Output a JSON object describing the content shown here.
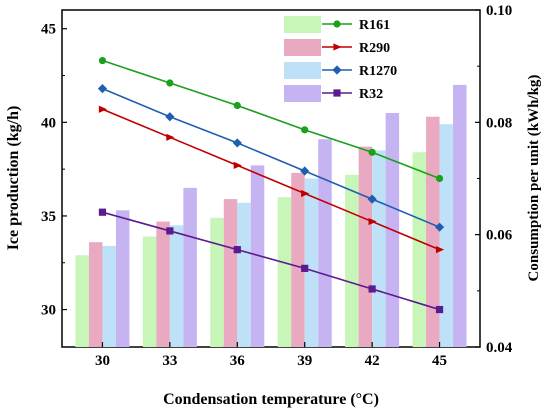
{
  "chart_data": {
    "type": "bar+line",
    "title": "",
    "xlabel": "Condensation temperature (°C)",
    "ylabel_left": "Ice production (kg/h)",
    "ylabel_right": "Consumption per unit (kWh/kg)",
    "categories": [
      "30",
      "33",
      "36",
      "39",
      "42",
      "45"
    ],
    "y_left": {
      "min": 28,
      "max": 46,
      "ticks": [
        30,
        35,
        40,
        45
      ]
    },
    "y_right": {
      "min": 0.04,
      "max": 0.1,
      "ticks": [
        "0.04",
        "0.06",
        "0.08",
        "0.10"
      ]
    },
    "legend_position": "top-right",
    "bar_series": [
      {
        "name": "R161",
        "color": "#c8f5b8",
        "values": [
          32.9,
          33.9,
          34.9,
          36.0,
          37.2,
          38.4
        ]
      },
      {
        "name": "R290",
        "color": "#e9a9c1",
        "values": [
          33.6,
          34.7,
          35.9,
          37.3,
          38.7,
          40.3
        ]
      },
      {
        "name": "R1270",
        "color": "#bfe1f7",
        "values": [
          33.4,
          34.5,
          35.7,
          37.0,
          38.5,
          39.9
        ]
      },
      {
        "name": "R32",
        "color": "#c6b4f2",
        "values": [
          35.3,
          36.5,
          37.7,
          39.1,
          40.5,
          42.0
        ]
      }
    ],
    "line_series": [
      {
        "name": "R161",
        "color": "#1aa01a",
        "marker": "circle",
        "values": [
          43.3,
          42.1,
          40.9,
          39.6,
          38.4,
          37.0
        ]
      },
      {
        "name": "R290",
        "color": "#c00000",
        "marker": "triangle-right",
        "values": [
          40.7,
          39.2,
          37.7,
          36.2,
          34.7,
          33.2
        ]
      },
      {
        "name": "R1270",
        "color": "#1f5fb0",
        "marker": "diamond",
        "values": [
          41.8,
          40.3,
          38.9,
          37.4,
          35.9,
          34.4
        ]
      },
      {
        "name": "R32",
        "color": "#5b1a8f",
        "marker": "square",
        "values": [
          35.2,
          34.2,
          33.2,
          32.2,
          31.1,
          30.0
        ]
      }
    ]
  }
}
